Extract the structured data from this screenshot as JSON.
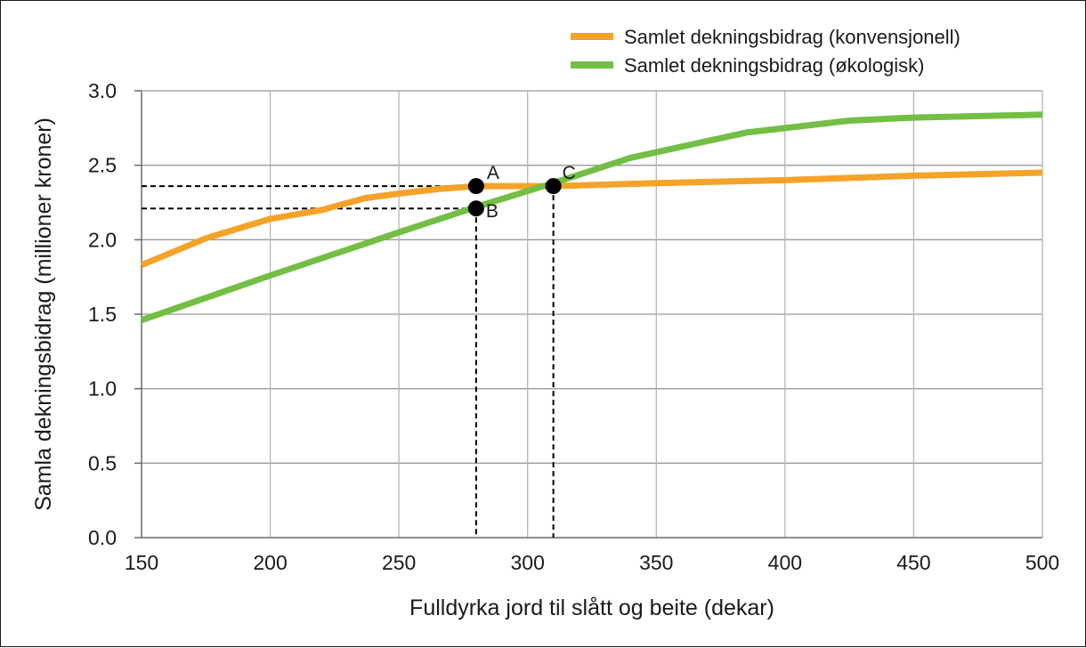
{
  "chart_data": {
    "type": "line",
    "title": "",
    "xlabel": "Fulldyrka jord til slått og beite (dekar)",
    "ylabel": "Samla dekningsbidrag (millioner kroner)",
    "xlim": [
      150,
      500
    ],
    "ylim": [
      0.0,
      3.0
    ],
    "x_ticks": [
      150,
      200,
      250,
      300,
      350,
      400,
      450,
      500
    ],
    "x_tick_labels": [
      "150",
      "200",
      "250",
      "300",
      "350",
      "400",
      "450",
      "500"
    ],
    "y_ticks": [
      0.0,
      0.5,
      1.0,
      1.5,
      2.0,
      2.5,
      3.0
    ],
    "y_tick_labels": [
      "0.0",
      "0.5",
      "1.0",
      "1.5",
      "2.0",
      "2.5",
      "3.0"
    ],
    "grid": true,
    "legend_position": "top-right",
    "series": [
      {
        "name": "Samlet dekningsbidrag (konvensjonell)",
        "color": "#f5a229",
        "points": [
          [
            150,
            1.83
          ],
          [
            175,
            2.01
          ],
          [
            200,
            2.14
          ],
          [
            220,
            2.2
          ],
          [
            237,
            2.28
          ],
          [
            250,
            2.31
          ],
          [
            265,
            2.34
          ],
          [
            280,
            2.36
          ],
          [
            300,
            2.36
          ],
          [
            310,
            2.36
          ],
          [
            350,
            2.38
          ],
          [
            400,
            2.4
          ],
          [
            450,
            2.43
          ],
          [
            500,
            2.45
          ]
        ]
      },
      {
        "name": "Samlet dekningsbidrag (økologisk)",
        "color": "#72bf44",
        "points": [
          [
            150,
            1.46
          ],
          [
            200,
            1.76
          ],
          [
            250,
            2.05
          ],
          [
            280,
            2.22
          ],
          [
            310,
            2.38
          ],
          [
            340,
            2.55
          ],
          [
            385,
            2.72
          ],
          [
            425,
            2.8
          ],
          [
            450,
            2.82
          ],
          [
            500,
            2.84
          ]
        ]
      }
    ],
    "annotations": [
      {
        "label": "A",
        "x": 280,
        "y": 2.36
      },
      {
        "label": "B",
        "x": 280,
        "y": 2.21
      },
      {
        "label": "C",
        "x": 310,
        "y": 2.36
      }
    ],
    "guide_lines": [
      {
        "from": "A",
        "to_axis": "y"
      },
      {
        "from": "B",
        "to_axis": "y"
      },
      {
        "from": "B",
        "to_axis": "x"
      },
      {
        "from": "C",
        "to_axis": "x"
      }
    ]
  }
}
